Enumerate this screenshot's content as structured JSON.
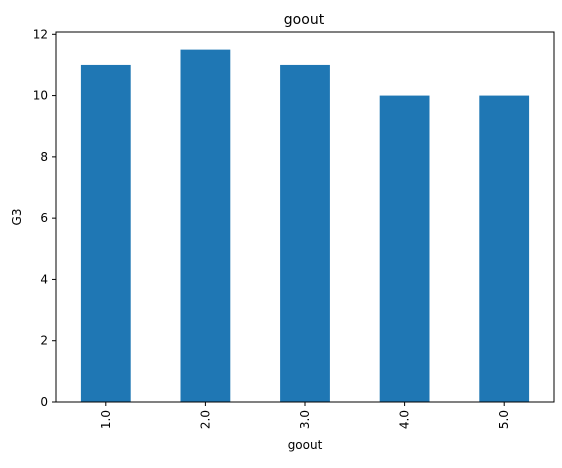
{
  "chart_data": {
    "type": "bar",
    "title": "goout",
    "xlabel": "goout",
    "ylabel": "G3",
    "categories": [
      "1.0",
      "2.0",
      "3.0",
      "4.0",
      "5.0"
    ],
    "values": [
      11,
      11.5,
      11,
      10,
      10
    ],
    "ylim": [
      0,
      12.075
    ],
    "yticks": [
      0,
      2,
      4,
      6,
      8,
      10,
      12
    ],
    "grid": false,
    "legend": "none",
    "bar_color": "#1f77b4"
  }
}
